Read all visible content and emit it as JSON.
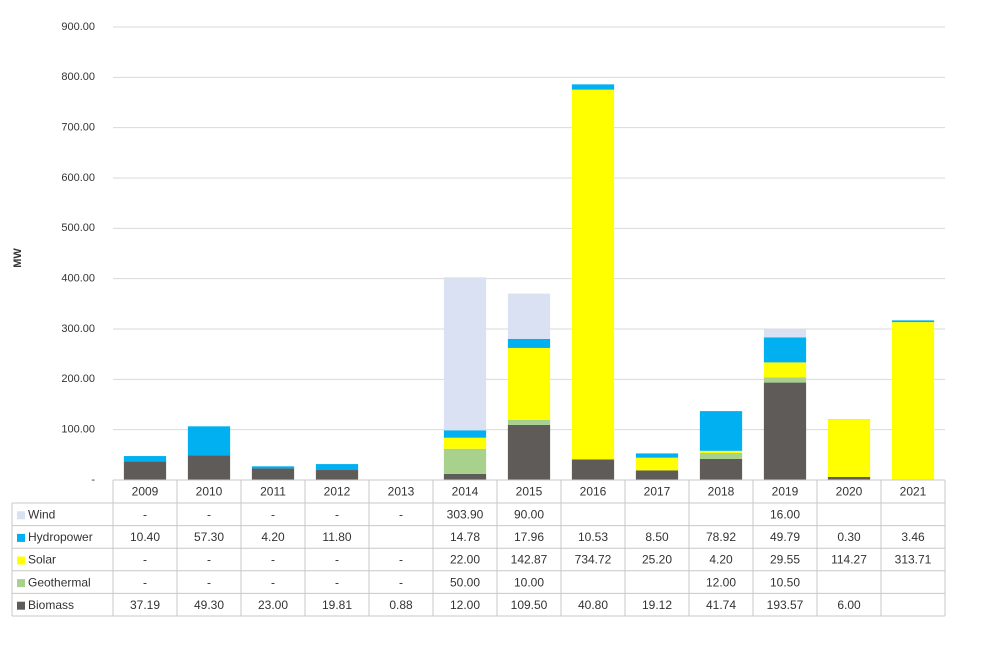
{
  "chart_data": {
    "type": "stacked_bar",
    "y_label": "MW",
    "categories": [
      "2009",
      "2010",
      "2011",
      "2012",
      "2013",
      "2014",
      "2015",
      "2016",
      "2017",
      "2018",
      "2019",
      "2020",
      "2021"
    ],
    "ylim": [
      0,
      900
    ],
    "yticks": [
      {
        "value": 0,
        "label": "-"
      },
      {
        "value": 100,
        "label": "100.00"
      },
      {
        "value": 200,
        "label": "200.00"
      },
      {
        "value": 300,
        "label": "300.00"
      },
      {
        "value": 400,
        "label": "400.00"
      },
      {
        "value": 500,
        "label": "500.00"
      },
      {
        "value": 600,
        "label": "600.00"
      },
      {
        "value": 700,
        "label": "700.00"
      },
      {
        "value": 800,
        "label": "800.00"
      },
      {
        "value": 900,
        "label": "900.00"
      }
    ],
    "grid": true,
    "series": [
      {
        "name": "Biomass",
        "color": "#5f5b59",
        "values": [
          37.19,
          49.3,
          23,
          19.81,
          0.88,
          12,
          109.5,
          40.8,
          19.12,
          41.74,
          193.57,
          6,
          null
        ],
        "value_labels": [
          "37.19",
          "49.30",
          "23.00",
          "19.81",
          "0.88",
          "12.00",
          "109.50",
          "40.80",
          "19.12",
          "41.74",
          "193.57",
          "6.00",
          null
        ]
      },
      {
        "name": "Geothermal",
        "color": "#a9d18e",
        "values": [
          0,
          0,
          0,
          0,
          0,
          50,
          10,
          null,
          null,
          12,
          10.5,
          null,
          null
        ],
        "value_labels": [
          "-",
          "-",
          "-",
          "-",
          "-",
          "50.00",
          "10.00",
          null,
          null,
          "12.00",
          "10.50",
          null,
          null
        ]
      },
      {
        "name": "Solar",
        "color": "#ffff00",
        "values": [
          0,
          0,
          0,
          0,
          0,
          22,
          142.87,
          734.72,
          25.2,
          4.2,
          29.55,
          114.27,
          313.71
        ],
        "value_labels": [
          "-",
          "-",
          "-",
          "-",
          "-",
          "22.00",
          "142.87",
          "734.72",
          "25.20",
          "4.20",
          "29.55",
          "114.27",
          "313.71"
        ]
      },
      {
        "name": "Hydropower",
        "color": "#00b0f0",
        "values": [
          10.4,
          57.3,
          4.2,
          11.8,
          null,
          14.78,
          17.96,
          10.53,
          8.5,
          78.92,
          49.79,
          0.3,
          3.46
        ],
        "value_labels": [
          "10.40",
          "57.30",
          "4.20",
          "11.80",
          null,
          "14.78",
          "17.96",
          "10.53",
          "8.50",
          "78.92",
          "49.79",
          "0.30",
          "3.46"
        ]
      },
      {
        "name": "Wind",
        "color": "#d9e1f2",
        "values": [
          0,
          0,
          0,
          0,
          0,
          303.9,
          90,
          null,
          null,
          null,
          16,
          null,
          null
        ],
        "value_labels": [
          "-",
          "-",
          "-",
          "-",
          "-",
          "303.90",
          "90.00",
          null,
          null,
          null,
          "16.00",
          null,
          null
        ]
      }
    ]
  }
}
